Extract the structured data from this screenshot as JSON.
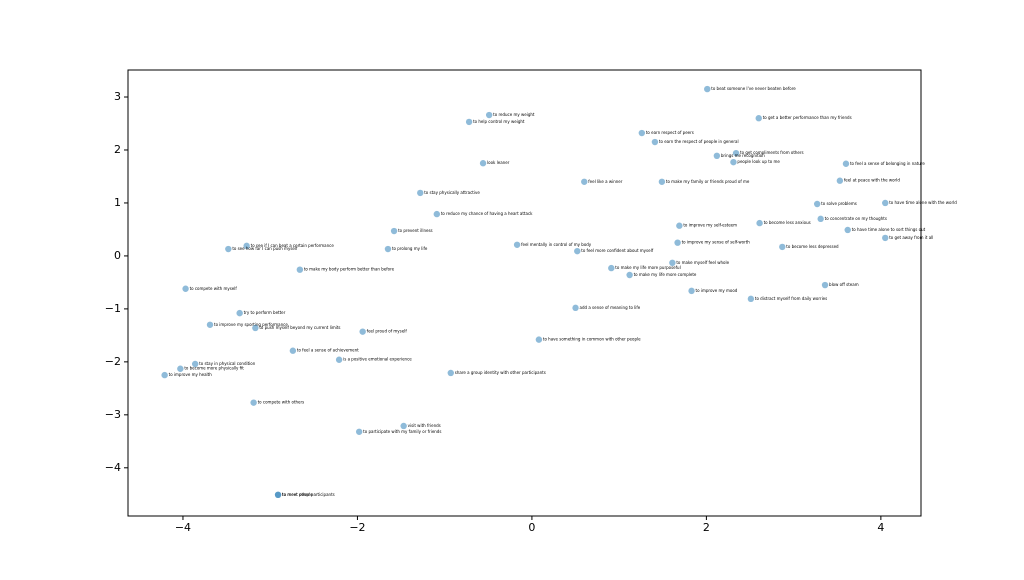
{
  "chart_data": {
    "type": "scatter",
    "color": "#1f77b4",
    "x": [
      2.01,
      2.6,
      -0.49,
      -0.72,
      1.26,
      1.41,
      2.34,
      2.12,
      2.31,
      -0.56,
      3.6,
      0.6,
      1.49,
      3.53,
      -1.28,
      3.27,
      4.05,
      -1.09,
      3.31,
      2.61,
      1.69,
      3.62,
      -1.58,
      4.05,
      1.67,
      -0.17,
      2.87,
      -3.27,
      -3.48,
      -1.65,
      0.52,
      1.61,
      -2.66,
      0.91,
      1.12,
      3.36,
      -3.97,
      1.83,
      2.51,
      0.5,
      -3.35,
      -3.69,
      -3.17,
      -1.94,
      0.08,
      -2.74,
      -2.21,
      -3.86,
      -4.03,
      -4.21,
      -0.93,
      -3.19,
      -1.47,
      -1.98,
      -2.91,
      -2.91
    ],
    "values": [
      3.15,
      2.6,
      2.66,
      2.53,
      2.32,
      2.15,
      1.94,
      1.89,
      1.77,
      1.75,
      1.74,
      1.4,
      1.4,
      1.42,
      1.19,
      0.98,
      1.0,
      0.79,
      0.7,
      0.62,
      0.57,
      0.49,
      0.47,
      0.34,
      0.25,
      0.21,
      0.17,
      0.19,
      0.13,
      0.13,
      0.09,
      -0.13,
      -0.26,
      -0.23,
      -0.36,
      -0.55,
      -0.62,
      -0.66,
      -0.81,
      -0.98,
      -1.08,
      -1.3,
      -1.36,
      -1.43,
      -1.58,
      -1.79,
      -1.96,
      -2.04,
      -2.13,
      -2.25,
      -2.21,
      -2.77,
      -3.21,
      -3.32,
      -4.51,
      -4.51
    ],
    "labels": [
      "to beat someone I've never beaten before",
      "to get a better performance than my friends",
      "to reduce my weight",
      "to help control my weight",
      "to earn respect of peers",
      "to earn the respect of people in general",
      "to get compliments from others",
      "brings me recognition",
      "people look up to me",
      "look leaner",
      "to feel a sense of belonging in nature",
      "feel like a winner",
      "to make my family or friends proud of me",
      "feel at peace with the world",
      "to stay physically attractive",
      "to solve problems",
      "to have time alone with the world",
      "to reduce my chance of having a heart attack",
      "to concentrate on my thoughts",
      "to become less anxious",
      "to improve my self-esteem",
      "to have time alone to sort things out",
      "to prevent illness",
      "to get away from it all",
      "to improve my sense of self-worth",
      "feel mentally in control of my body",
      "to become less depressed",
      "to see if I can beat a certain performance",
      "to see how far I can push myself",
      "to prolong my life",
      "to feel more confident about myself",
      "to make myself feel whole",
      "to make my body perform better than before",
      "to make my life more purposeful",
      "to make my life more complete",
      "blow off steam",
      "to compete with myself",
      "to improve my mood",
      "to distract myself from daily worries",
      "add a sense of meaning to life",
      "try to perform better",
      "to improve my sporting performance",
      "to push myself beyond my current limits",
      "feel proud of myself",
      "to have something in common with other people",
      "to feel a sense of achievement",
      "is a positive emotional experience",
      "to stay in physical condition",
      "to become more physically fit",
      "to improve my health",
      "share a group identity with other participants",
      "to compete with others",
      "visit with friends",
      "to participate with my family or friends",
      "to meet people",
      "to meet other participants"
    ],
    "xlim": [
      -4.63,
      4.46
    ],
    "ylim": [
      -4.91,
      3.51
    ],
    "xticks": [
      {
        "value": -4,
        "label": "−4"
      },
      {
        "value": -2,
        "label": "−2"
      },
      0,
      2,
      4
    ],
    "yticks": [
      {
        "value": -4,
        "label": "−4"
      },
      {
        "value": -3,
        "label": "−3"
      },
      {
        "value": -2,
        "label": "−2"
      },
      {
        "value": -1,
        "label": "−1"
      },
      0,
      1,
      2,
      3
    ]
  }
}
